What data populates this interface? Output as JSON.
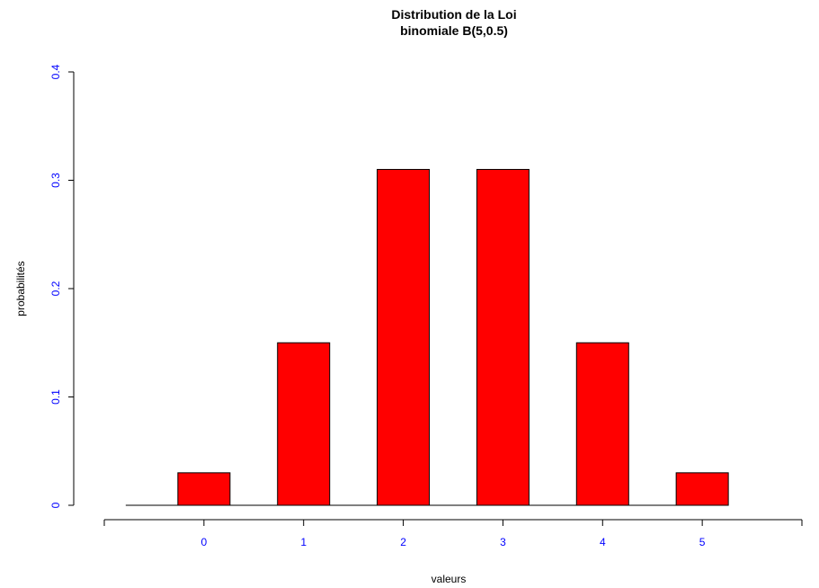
{
  "chart_data": {
    "type": "bar",
    "title": [
      "Distribution de la Loi",
      "binomiale B(5,0.5)"
    ],
    "xlabel": "valeurs",
    "ylabel": "probabilités",
    "categories": [
      "0",
      "1",
      "2",
      "3",
      "4",
      "5"
    ],
    "values": [
      0.03,
      0.15,
      0.31,
      0.31,
      0.15,
      0.03
    ],
    "ylim": [
      0,
      0.4
    ],
    "yticks": [
      0,
      0.1,
      0.2,
      0.3,
      0.4
    ],
    "ytick_labels": [
      "0",
      "0.1",
      "0.2",
      "0.3",
      "0.4"
    ],
    "xlim": [
      -1,
      6
    ],
    "xticks": [
      0,
      1,
      2,
      3,
      4,
      5
    ],
    "grid": false,
    "legend": "none",
    "colors": {
      "bar_fill": "#ff0000",
      "bar_stroke": "#000000",
      "tick_labels": "#0000ff",
      "text": "#000000"
    }
  }
}
